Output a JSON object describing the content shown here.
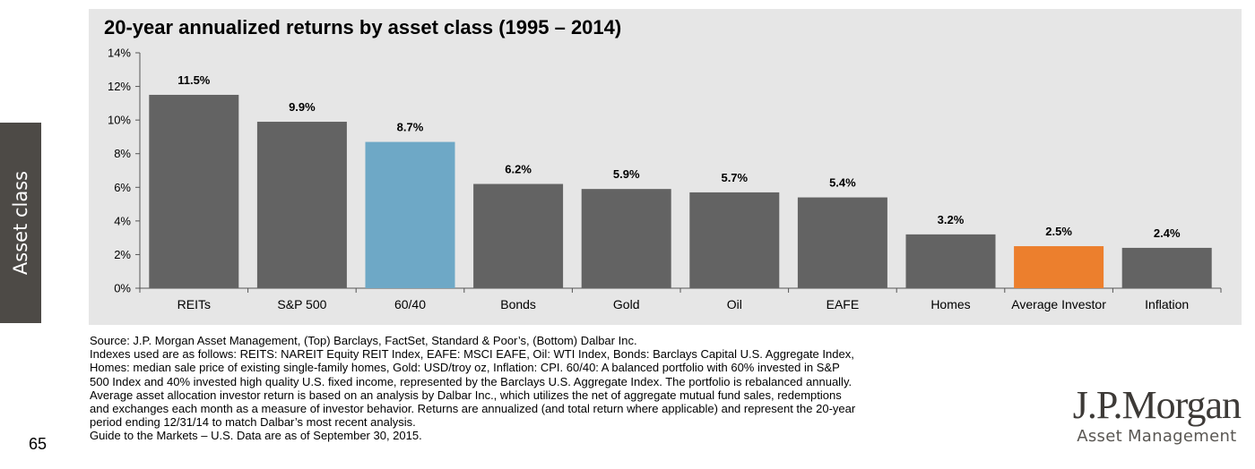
{
  "side_tab": {
    "label": "Asset class"
  },
  "page_number": "65",
  "chart_data": {
    "type": "bar",
    "title": "20-year annualized returns by asset class (1995 – 2014)",
    "categories": [
      "REITs",
      "S&P 500",
      "60/40",
      "Bonds",
      "Gold",
      "Oil",
      "EAFE",
      "Homes",
      "Average Investor",
      "Inflation"
    ],
    "values": [
      11.5,
      9.9,
      8.7,
      6.2,
      5.9,
      5.7,
      5.4,
      3.2,
      2.5,
      2.4
    ],
    "data_labels": [
      "11.5%",
      "9.9%",
      "8.7%",
      "6.2%",
      "5.9%",
      "5.7%",
      "5.4%",
      "3.2%",
      "2.5%",
      "2.4%"
    ],
    "yticks": [
      0,
      2,
      4,
      6,
      8,
      10,
      12,
      14
    ],
    "ytick_labels": [
      "0%",
      "2%",
      "4%",
      "6%",
      "8%",
      "10%",
      "12%",
      "14%"
    ],
    "ylim": [
      0,
      14
    ],
    "xlabel": "",
    "ylabel": "",
    "grid": false,
    "colors": {
      "default": "#636363",
      "60/40": "#6ea8c6",
      "Average Investor": "#ec7f2d"
    }
  },
  "notes": {
    "lines": [
      "Source: J.P. Morgan Asset Management, (Top) Barclays, FactSet, Standard & Poor’s, (Bottom) Dalbar Inc.",
      "Indexes used are as follows: REITS: NAREIT Equity REIT Index, EAFE: MSCI EAFE, Oil: WTI Index, Bonds: Barclays Capital U.S. Aggregate Index,",
      "Homes: median sale price of existing single-family homes, Gold: USD/troy oz, Inflation: CPI. 60/40: A balanced portfolio with 60% invested in S&P",
      "500 Index and 40% invested high quality U.S. fixed income, represented by the Barclays U.S. Aggregate Index. The portfolio is rebalanced annually.",
      "Average asset allocation investor return is based on an analysis by Dalbar Inc., which utilizes the net of aggregate mutual fund sales, redemptions",
      "and exchanges each month as a measure of investor behavior. Returns are annualized (and total return where applicable) and represent the 20-year",
      "period ending 12/31/14 to match Dalbar’s most recent analysis.",
      "Guide to the Markets – U.S. Data are as of September 30, 2015."
    ]
  },
  "logo": {
    "main": "J.P.Morgan",
    "sub": "Asset Management"
  }
}
